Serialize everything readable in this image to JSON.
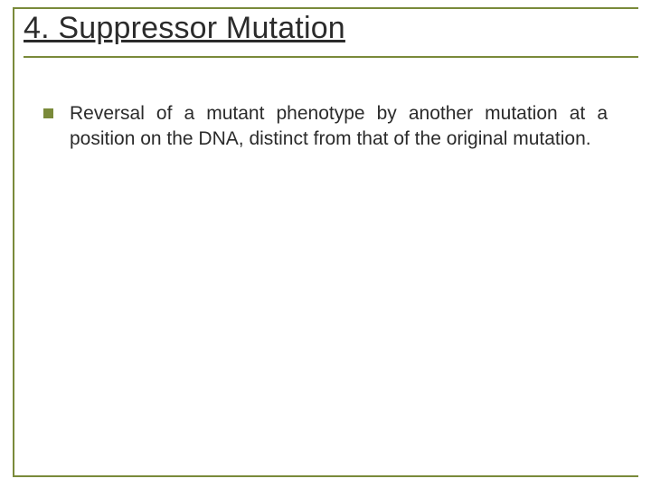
{
  "slide": {
    "title": "4. Suppressor Mutation",
    "title_fontsize": 34,
    "title_color": "#2b2b2b",
    "title_underline": true,
    "frame_color": "#7a8a3a",
    "background_color": "#ffffff",
    "bullets": [
      {
        "marker_color": "#7a8a3a",
        "text": "Reversal of a mutant phenotype by another mutation at a position on the DNA, distinct from that of the original mutation."
      }
    ],
    "body_fontsize": 21,
    "body_color": "#2b2b2b",
    "body_align": "justify"
  }
}
